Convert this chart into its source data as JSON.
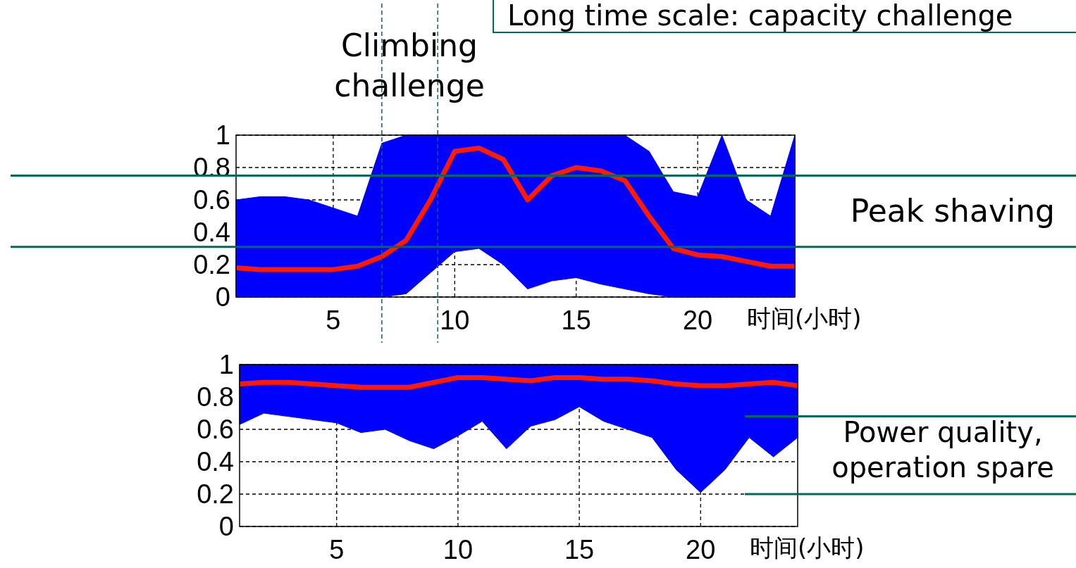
{
  "chart_data": [
    {
      "type": "line",
      "title": "Long time scale: capacity challenge",
      "xlabel": "时间(小时)",
      "x": [
        1,
        2,
        3,
        4,
        5,
        6,
        7,
        8,
        9,
        10,
        11,
        12,
        13,
        14,
        15,
        16,
        17,
        18,
        19,
        20,
        21,
        22,
        23,
        24
      ],
      "xlim": [
        1,
        24
      ],
      "xticks": [
        5,
        10,
        15,
        20
      ],
      "ylim": [
        0,
        1
      ],
      "yticks": [
        0,
        0.2,
        0.4,
        0.6,
        0.8,
        1
      ],
      "grid": true,
      "series": [
        {
          "color": "#ff1a00",
          "values": [
            0.18,
            0.17,
            0.17,
            0.17,
            0.17,
            0.19,
            0.25,
            0.35,
            0.6,
            0.9,
            0.92,
            0.85,
            0.6,
            0.75,
            0.8,
            0.78,
            0.72,
            0.5,
            0.3,
            0.26,
            0.25,
            0.22,
            0.19,
            0.19
          ],
          "lower": [
            0,
            0,
            0,
            0,
            0,
            0,
            0,
            0.02,
            0.15,
            0.28,
            0.3,
            0.2,
            0.05,
            0.1,
            0.12,
            0.08,
            0.05,
            0.02,
            0,
            0,
            0,
            0,
            0,
            0
          ],
          "upper": [
            0.6,
            0.62,
            0.62,
            0.6,
            0.55,
            0.5,
            0.95,
            1,
            1,
            1,
            1,
            1,
            1,
            1,
            1,
            1,
            1,
            0.9,
            0.65,
            0.62,
            1,
            0.6,
            0.5,
            1
          ]
        }
      ],
      "ref_lines": [
        {
          "axis": "x",
          "value": 7,
          "color": "#00695c",
          "line_style": "dashed"
        },
        {
          "axis": "x",
          "value": 9.3,
          "color": "#00695c",
          "line_style": "dashed"
        },
        {
          "axis": "y",
          "value": 0.75,
          "color": "#00695c",
          "line_style": "solid"
        },
        {
          "axis": "y",
          "value": 0.31,
          "color": "#00695c",
          "line_style": "solid"
        }
      ],
      "annotations": [
        "Climbing challenge",
        "Peak shaving"
      ]
    },
    {
      "type": "line",
      "xlabel": "时间(小时)",
      "x": [
        1,
        2,
        3,
        4,
        5,
        6,
        7,
        8,
        9,
        10,
        11,
        12,
        13,
        14,
        15,
        16,
        17,
        18,
        19,
        20,
        21,
        22,
        23,
        24
      ],
      "xlim": [
        1,
        24
      ],
      "xticks": [
        5,
        10,
        15,
        20
      ],
      "ylim": [
        0,
        1
      ],
      "yticks": [
        0,
        0.2,
        0.4,
        0.6,
        0.8,
        1
      ],
      "grid": true,
      "series": [
        {
          "color": "#ff1a00",
          "values": [
            0.88,
            0.89,
            0.89,
            0.88,
            0.87,
            0.86,
            0.86,
            0.86,
            0.89,
            0.92,
            0.92,
            0.91,
            0.9,
            0.92,
            0.92,
            0.91,
            0.91,
            0.9,
            0.88,
            0.87,
            0.87,
            0.88,
            0.89,
            0.87
          ],
          "lower": [
            0.63,
            0.7,
            0.68,
            0.66,
            0.64,
            0.58,
            0.6,
            0.53,
            0.48,
            0.56,
            0.65,
            0.48,
            0.62,
            0.66,
            0.74,
            0.65,
            0.6,
            0.55,
            0.35,
            0.21,
            0.35,
            0.55,
            0.43,
            0.55
          ],
          "upper": [
            1,
            1,
            1,
            1,
            1,
            1,
            1,
            1,
            1,
            1,
            1,
            1,
            1,
            1,
            1,
            1,
            1,
            1,
            1,
            1,
            1,
            1,
            1,
            1
          ]
        }
      ],
      "ref_lines": [
        {
          "axis": "y",
          "value": 0.68,
          "color": "#00695c",
          "line_style": "solid"
        },
        {
          "axis": "y",
          "value": 0.2,
          "color": "#00695c",
          "line_style": "solid"
        }
      ],
      "annotations": [
        "Power quality, operation spare"
      ]
    }
  ]
}
